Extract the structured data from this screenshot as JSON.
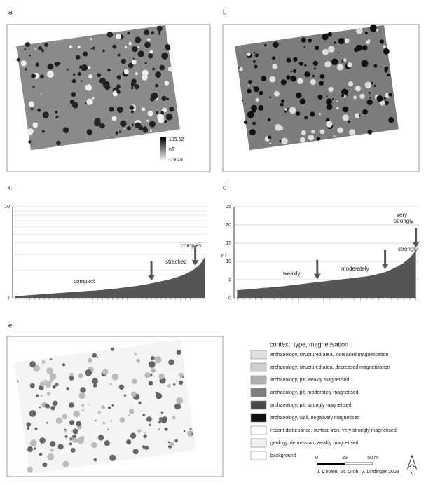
{
  "panels": {
    "a": {
      "label": "a",
      "colorbar": {
        "max": "109.52",
        "unit": "nT",
        "min": "-79.18"
      }
    },
    "b": {
      "label": "b"
    },
    "c": {
      "label": "c"
    },
    "d": {
      "label": "d"
    },
    "e": {
      "label": "e"
    }
  },
  "chart_data": [
    {
      "type": "area",
      "log_scale": true,
      "ylim": [
        1,
        10
      ],
      "yticks": [
        1,
        10
      ],
      "minor_yticks": [
        2,
        3,
        4,
        5,
        6,
        7,
        8,
        9
      ],
      "grid": true,
      "color": "#555555",
      "values": [
        1.04,
        1.05,
        1.06,
        1.07,
        1.08,
        1.09,
        1.1,
        1.11,
        1.12,
        1.13,
        1.14,
        1.15,
        1.16,
        1.17,
        1.18,
        1.19,
        1.2,
        1.21,
        1.22,
        1.24,
        1.25,
        1.27,
        1.29,
        1.31,
        1.33,
        1.35,
        1.38,
        1.41,
        1.44,
        1.48,
        1.52,
        1.56,
        1.61,
        1.67,
        1.74,
        1.83,
        1.95,
        2.1,
        2.35,
        2.8
      ],
      "annotations": [
        "compact",
        "streched",
        "complex"
      ]
    },
    {
      "type": "area",
      "ylabel": "nT",
      "ylim": [
        0,
        25
      ],
      "yticks": [
        0,
        5,
        10,
        15,
        20,
        25
      ],
      "grid": true,
      "color": "#555555",
      "values": [
        2.1,
        2.2,
        2.4,
        2.5,
        2.7,
        2.8,
        3.0,
        3.1,
        3.3,
        3.5,
        3.7,
        3.9,
        4.1,
        4.3,
        4.5,
        4.7,
        4.9,
        5.1,
        5.3,
        5.5,
        5.7,
        5.9,
        6.2,
        6.6,
        7.1,
        7.8,
        8.6,
        9.6,
        11.0,
        13.0
      ],
      "annotations": [
        "weakly",
        "moderately",
        "strongly",
        "very",
        "strongly"
      ]
    }
  ],
  "legend": {
    "title": "context, type, magnetisation",
    "items": [
      "archaeology, structured area, increased magnetisation",
      "archaeology, structured area, decreased magnetisation",
      "archaeology, pit, weakly magnetised",
      "archaeology, pit, moderately magnetised",
      "archaeology, pit, strongly magnetised",
      "archaeology, wall, negatively magnetised",
      "recent disturbance, surface iron, very strongly magnetised",
      "geology, depression, weakly magnetised",
      "background"
    ],
    "scale": [
      "0",
      "25",
      "50 m"
    ],
    "credit": "J. Coolen, St. Groh, V. Lindinger 2009",
    "north": "N"
  }
}
